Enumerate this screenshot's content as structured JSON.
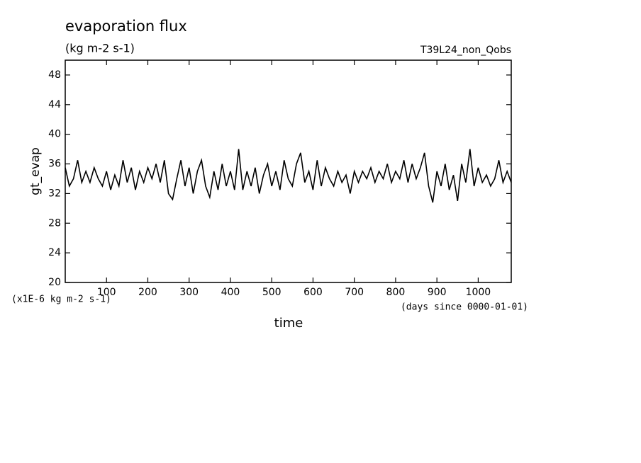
{
  "chart_data": {
    "type": "line",
    "title": "evaporation flux",
    "subtitle": "(kg m-2 s-1)",
    "annotation": "T39L24_non_Qobs",
    "y_label": "gt_evap",
    "x_label": "time",
    "y_unit_note": "(x1E-6 kg m-2 s-1)",
    "x_unit_note": "(days since 0000-01-01)",
    "xlim": [
      0,
      1080
    ],
    "ylim": [
      20,
      50
    ],
    "xticks": [
      100,
      200,
      300,
      400,
      500,
      600,
      700,
      800,
      900,
      1000
    ],
    "yticks": [
      20,
      24,
      28,
      32,
      36,
      40,
      44,
      48
    ],
    "color": "#000000",
    "x": [
      0,
      10,
      20,
      30,
      40,
      50,
      60,
      70,
      80,
      90,
      100,
      110,
      120,
      130,
      140,
      150,
      160,
      170,
      180,
      190,
      200,
      210,
      220,
      230,
      240,
      250,
      260,
      270,
      280,
      290,
      300,
      310,
      320,
      330,
      340,
      350,
      360,
      370,
      380,
      390,
      400,
      410,
      420,
      430,
      440,
      450,
      460,
      470,
      480,
      490,
      500,
      510,
      520,
      530,
      540,
      550,
      560,
      570,
      580,
      590,
      600,
      610,
      620,
      630,
      640,
      650,
      660,
      670,
      680,
      690,
      700,
      710,
      720,
      730,
      740,
      750,
      760,
      770,
      780,
      790,
      800,
      810,
      820,
      830,
      840,
      850,
      860,
      870,
      880,
      890,
      900,
      910,
      920,
      930,
      940,
      950,
      960,
      970,
      980,
      990,
      1000,
      1010,
      1020,
      1030,
      1040,
      1050,
      1060,
      1070,
      1080
    ],
    "values": [
      35.5,
      33,
      34,
      36.5,
      33.5,
      35,
      33.5,
      35.5,
      34,
      33,
      35,
      32.5,
      34.5,
      33,
      36.5,
      33.5,
      35.5,
      32.5,
      35,
      33.5,
      35.5,
      34,
      36,
      33.5,
      36.5,
      32,
      31.2,
      34,
      36.5,
      33,
      35.5,
      32,
      35,
      36.5,
      33,
      31.5,
      35,
      32.5,
      36,
      33,
      35,
      32.5,
      38,
      32.5,
      35,
      33,
      35.5,
      32,
      34.5,
      36,
      33,
      35,
      32.5,
      36.5,
      34,
      33,
      36,
      37.5,
      33.5,
      35,
      32.5,
      36.5,
      33,
      35.5,
      34,
      33,
      35,
      33.5,
      34.5,
      32,
      35,
      33.5,
      35,
      34,
      35.5,
      33.5,
      35,
      34,
      36,
      33.5,
      35,
      34,
      36.5,
      33.5,
      36,
      34,
      35.5,
      37.5,
      33,
      30.8,
      35,
      33,
      36,
      32.5,
      34.5,
      31,
      36,
      33.5,
      38,
      33,
      35.5,
      33.5,
      34.5,
      33,
      34,
      36.5,
      33.5,
      35,
      33.5
    ]
  }
}
